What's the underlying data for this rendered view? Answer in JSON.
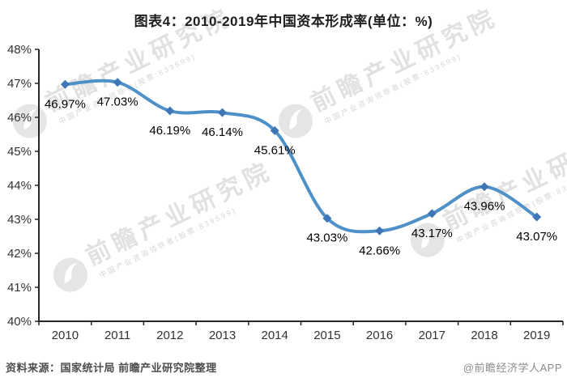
{
  "title": "图表4：2010-2019年中国资本形成率(单位：%)",
  "chart_data": {
    "type": "line",
    "title": "图表4：2010-2019年中国资本形成率(单位：%)",
    "categories": [
      "2010",
      "2011",
      "2012",
      "2013",
      "2014",
      "2015",
      "2016",
      "2017",
      "2018",
      "2019"
    ],
    "values": [
      46.97,
      47.03,
      46.19,
      46.14,
      45.61,
      43.03,
      42.66,
      43.17,
      43.96,
      43.07
    ],
    "data_labels": [
      "46.97%",
      "47.03%",
      "46.19%",
      "46.14%",
      "45.61%",
      "43.03%",
      "42.66%",
      "43.17%",
      "43.96%",
      "43.07%"
    ],
    "xlabel": "",
    "ylabel": "",
    "ylim": [
      40,
      48
    ],
    "ytick_step": 1,
    "ytick_labels": [
      "40%",
      "41%",
      "42%",
      "43%",
      "44%",
      "45%",
      "46%",
      "47%",
      "48%"
    ],
    "grid": false,
    "legend": "none",
    "smooth": true,
    "marker": "diamond",
    "colors": {
      "line": "#4e90c8",
      "marker": "#3f77b6",
      "axis": "#262626",
      "axis_text": "#333333",
      "data_label_text": "#000000"
    }
  },
  "footer": {
    "source": "资料来源：国家统计局 前瞻产业研究院整理",
    "credit": "@前瞻经济学人APP"
  },
  "watermark": {
    "text": "前瞻产业研究院",
    "subtext": "中国产业咨询领导者(股票:839599)"
  }
}
